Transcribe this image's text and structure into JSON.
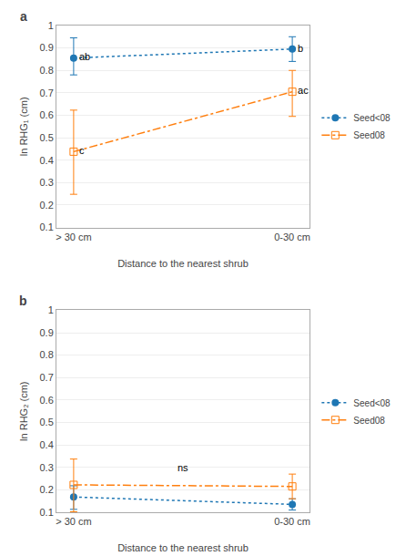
{
  "chart_data": [
    {
      "type": "line",
      "title": "a",
      "xlabel": "Distance to the nearest shrub",
      "ylabel": "ln RHG₁ (cm)",
      "categories": [
        "> 30 cm",
        "0-30 cm"
      ],
      "series": [
        {
          "name": "Seed<08",
          "color": "#1f77b4",
          "marker": "circle",
          "line_style": "dot",
          "values": [
            0.855,
            0.895
          ],
          "error_low": [
            0.075,
            0.055
          ],
          "error_high": [
            0.09,
            0.055
          ],
          "point_labels": [
            "ab",
            "b"
          ]
        },
        {
          "name": "Seed08",
          "color": "#ff7f0e",
          "marker": "square-open",
          "line_style": "dashdot",
          "values": [
            0.438,
            0.705
          ],
          "error_low": [
            0.19,
            0.11
          ],
          "error_high": [
            0.185,
            0.095
          ],
          "point_labels": [
            "c",
            "ac"
          ]
        }
      ],
      "ylim": [
        0.1,
        1.0
      ],
      "yticks": [
        0.1,
        0.2,
        0.3,
        0.4,
        0.5,
        0.6,
        0.7,
        0.8,
        0.9,
        1.0
      ],
      "grid": true,
      "legend": "right"
    },
    {
      "type": "line",
      "title": "b",
      "xlabel": "Distance to the nearest shrub",
      "ylabel": "ln RHG₂ (cm)",
      "categories": [
        "> 30 cm",
        "0-30 cm"
      ],
      "series": [
        {
          "name": "Seed<08",
          "color": "#1f77b4",
          "marker": "circle",
          "line_style": "dot",
          "values": [
            0.168,
            0.135
          ],
          "error_low": [
            0.055,
            0.025
          ],
          "error_high": [
            0.05,
            0.025
          ]
        },
        {
          "name": "Seed08",
          "color": "#ff7f0e",
          "marker": "square-open",
          "line_style": "dashdot",
          "values": [
            0.222,
            0.215
          ],
          "error_low": [
            0.12,
            0.055
          ],
          "error_high": [
            0.115,
            0.055
          ]
        }
      ],
      "annotations": [
        {
          "text": "ns",
          "y": 0.3
        }
      ],
      "ylim": [
        0.1,
        1.0
      ],
      "yticks": [
        0.1,
        0.2,
        0.3,
        0.4,
        0.5,
        0.6,
        0.7,
        0.8,
        0.9,
        1.0
      ],
      "grid": true,
      "legend": "right"
    }
  ]
}
